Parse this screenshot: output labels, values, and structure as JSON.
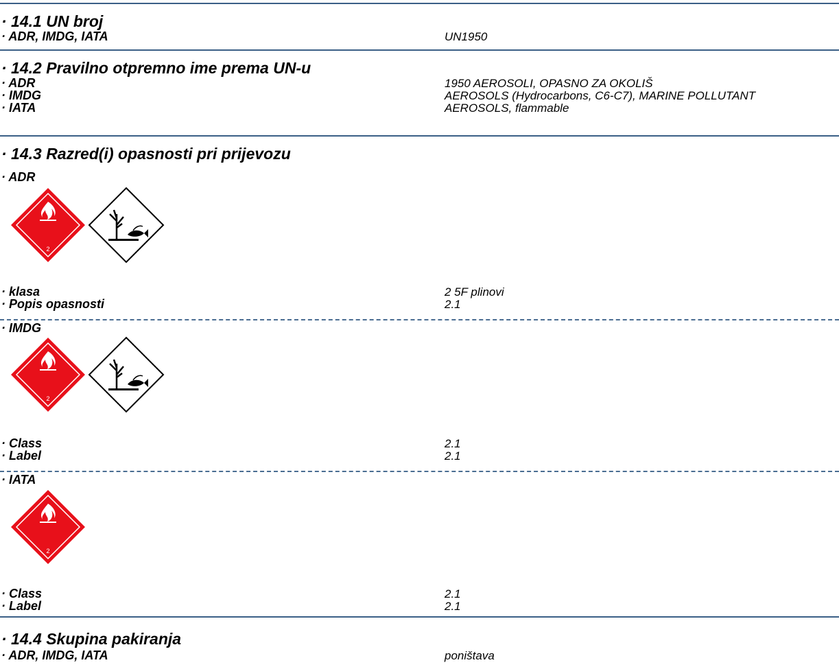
{
  "s141": {
    "heading": "· 14.1 UN broj",
    "rows": [
      {
        "label": "· ADR, IMDG, IATA",
        "value": "UN1950"
      }
    ]
  },
  "s142": {
    "heading": "· 14.2 Pravilno otpremno ime prema UN-u",
    "rows": [
      {
        "label": "· ADR",
        "value": "1950 AEROSOLI, OPASNO ZA OKOLIŠ"
      },
      {
        "label": "· IMDG",
        "value": "AEROSOLS (Hydrocarbons, C6-C7), MARINE POLLUTANT"
      },
      {
        "label": "· IATA",
        "value": "AEROSOLS, flammable"
      }
    ]
  },
  "s143": {
    "heading": "· 14.3 Razred(i) opasnosti pri prijevozu",
    "adr": {
      "title": "· ADR",
      "pictograms": [
        "flammable-gas-class-2",
        "environment-hazard"
      ],
      "placard_number": "2",
      "rows": [
        {
          "label": "· klasa",
          "value": "2   5F plinovi"
        },
        {
          "label": "· Popis opasnosti",
          "value": "2.1"
        }
      ]
    },
    "imdg": {
      "title": "· IMDG",
      "pictograms": [
        "flammable-gas-class-2",
        "environment-hazard"
      ],
      "placard_number": "2",
      "rows": [
        {
          "label": "· Class",
          "value": "2.1"
        },
        {
          "label": "· Label",
          "value": "2.1"
        }
      ]
    },
    "iata": {
      "title": "· IATA",
      "pictograms": [
        "flammable-gas-class-2"
      ],
      "placard_number": "2",
      "rows": [
        {
          "label": "· Class",
          "value": "2.1"
        },
        {
          "label": "· Label",
          "value": "2.1"
        }
      ]
    }
  },
  "s144": {
    "heading": "· 14.4 Skupina pakiranja",
    "rows": [
      {
        "label": "· ADR, IMDG, IATA",
        "value": "poništava"
      }
    ]
  },
  "colors": {
    "rule": "#3a5f86",
    "placard_red": "#e8101a"
  }
}
